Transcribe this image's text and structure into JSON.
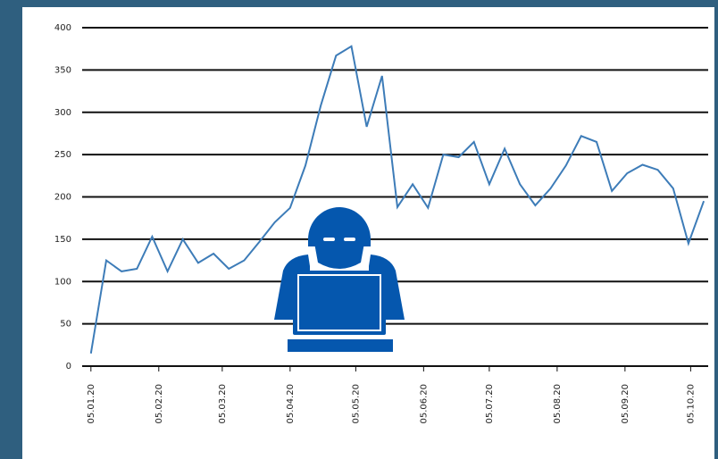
{
  "chart_data": {
    "type": "line",
    "x": [
      "2020-01-05",
      "2020-01-12",
      "2020-01-19",
      "2020-01-26",
      "2020-02-02",
      "2020-02-09",
      "2020-02-16",
      "2020-02-23",
      "2020-03-01",
      "2020-03-08",
      "2020-03-15",
      "2020-03-22",
      "2020-03-29",
      "2020-04-05",
      "2020-04-12",
      "2020-04-19",
      "2020-04-26",
      "2020-05-03",
      "2020-05-10",
      "2020-05-17",
      "2020-05-24",
      "2020-05-31",
      "2020-06-07",
      "2020-06-14",
      "2020-06-21",
      "2020-06-28",
      "2020-07-05",
      "2020-07-12",
      "2020-07-19",
      "2020-07-26",
      "2020-08-02",
      "2020-08-09",
      "2020-08-16",
      "2020-08-23",
      "2020-08-30",
      "2020-09-06",
      "2020-09-13",
      "2020-09-20",
      "2020-09-27",
      "2020-10-04",
      "2020-10-11"
    ],
    "series": [
      {
        "color": "#3d7cb8",
        "values": [
          15,
          125,
          112,
          115,
          153,
          112,
          150,
          122,
          133,
          115,
          125,
          147,
          170,
          187,
          237,
          308,
          367,
          378,
          283,
          343,
          188,
          215,
          187,
          250,
          247,
          265,
          215,
          257,
          215,
          190,
          210,
          237,
          272,
          265,
          207,
          228,
          238,
          232,
          210,
          145,
          195
        ]
      }
    ],
    "xlim": [
      "2020-01-01",
      "2020-10-13"
    ],
    "xticks": [
      {
        "value": "2020-01-05",
        "label": "05.01.20"
      },
      {
        "value": "2020-02-05",
        "label": "05.02.20"
      },
      {
        "value": "2020-03-05",
        "label": "05.03.20"
      },
      {
        "value": "2020-04-05",
        "label": "05.04.20"
      },
      {
        "value": "2020-05-05",
        "label": "05.05.20"
      },
      {
        "value": "2020-06-05",
        "label": "05.06.20"
      },
      {
        "value": "2020-07-05",
        "label": "05.07.20"
      },
      {
        "value": "2020-08-05",
        "label": "05.08.20"
      },
      {
        "value": "2020-09-05",
        "label": "05.09.20"
      },
      {
        "value": "2020-10-05",
        "label": "05.10.20"
      }
    ],
    "ylim": [
      0,
      400
    ],
    "yticks": [
      0,
      50,
      100,
      150,
      200,
      250,
      300,
      350,
      400
    ],
    "grid": true
  }
}
